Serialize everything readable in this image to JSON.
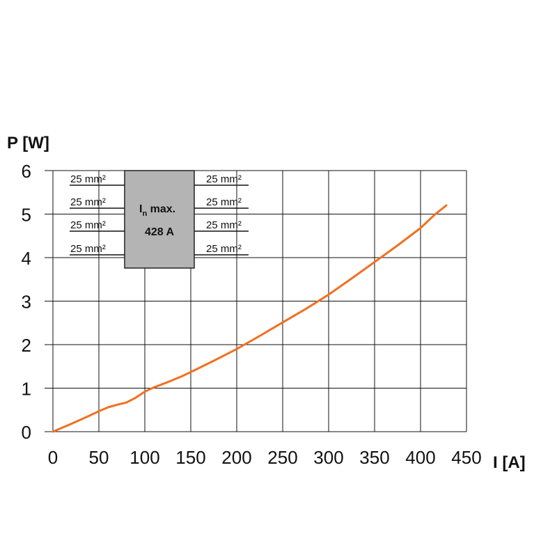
{
  "chart_data": {
    "type": "line",
    "ylabel": "P [W]",
    "xlabel": "I [A]",
    "xlim": [
      0,
      450
    ],
    "ylim": [
      0,
      6
    ],
    "x_ticks": [
      "0",
      "50",
      "100",
      "150",
      "200",
      "250",
      "300",
      "350",
      "400",
      "450"
    ],
    "y_ticks": [
      "0",
      "1",
      "2",
      "3",
      "4",
      "5",
      "6"
    ],
    "grid": true,
    "series": [
      {
        "color": "#f07020",
        "x": [
          0,
          20,
          40,
          50,
          60,
          70,
          80,
          90,
          100,
          110,
          125,
          140,
          150,
          175,
          200,
          225,
          250,
          275,
          300,
          325,
          350,
          375,
          400,
          415,
          428
        ],
        "y": [
          0,
          0.18,
          0.37,
          0.47,
          0.56,
          0.62,
          0.67,
          0.78,
          0.92,
          1.02,
          1.14,
          1.27,
          1.37,
          1.63,
          1.9,
          2.2,
          2.51,
          2.82,
          3.15,
          3.52,
          3.9,
          4.28,
          4.68,
          4.98,
          5.2
        ]
      }
    ]
  },
  "inset": {
    "wire_label": "25 mm²",
    "box_label_I": "I",
    "box_label_sub": "n",
    "box_label_rest": " max.",
    "box_value": "428 A",
    "box_color": "#b4b4b4"
  }
}
